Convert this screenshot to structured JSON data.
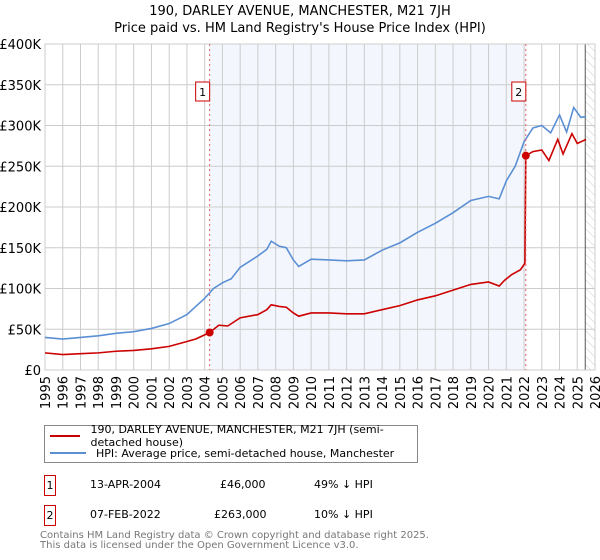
{
  "title": "190, DARLEY AVENUE, MANCHESTER, M21 7JH",
  "subtitle": "Price paid vs. HM Land Registry's House Price Index (HPI)",
  "chart_data": {
    "type": "line",
    "title": "190, DARLEY AVENUE, MANCHESTER, M21 7JH — Price paid vs. HM Land Registry's House Price Index (HPI)",
    "xlim": [
      1995,
      2026
    ],
    "ylim": [
      0,
      400000
    ],
    "yticks": [
      0,
      50000,
      100000,
      150000,
      200000,
      250000,
      300000,
      350000,
      400000
    ],
    "ytick_labels": [
      "£0",
      "£50K",
      "£100K",
      "£150K",
      "£200K",
      "£250K",
      "£300K",
      "£350K",
      "£400K"
    ],
    "xticks": [
      1995,
      1996,
      1997,
      1998,
      1999,
      2000,
      2001,
      2002,
      2003,
      2004,
      2005,
      2006,
      2007,
      2008,
      2009,
      2010,
      2011,
      2012,
      2013,
      2014,
      2015,
      2016,
      2017,
      2018,
      2019,
      2020,
      2021,
      2022,
      2023,
      2024,
      2025,
      2026
    ],
    "grid": true,
    "shaded_range": [
      2004.28,
      2022.1
    ],
    "hatched_from": 2025.45,
    "series": [
      {
        "name": "190, DARLEY AVENUE, MANCHESTER, M21 7JH (semi-detached house)",
        "color": "#cc0000",
        "x": [
          1995,
          1996,
          1997,
          1998,
          1999,
          2000,
          2001,
          2002,
          2003,
          2003.5,
          2004.28,
          2004.8,
          2005.3,
          2006,
          2007,
          2007.5,
          2007.75,
          2008.2,
          2008.6,
          2009,
          2009.3,
          2010,
          2011,
          2012,
          2013,
          2014,
          2015,
          2016,
          2017,
          2018,
          2019,
          2020,
          2020.6,
          2020.9,
          2021.3,
          2021.8,
          2022.05,
          2022.1,
          2022.5,
          2023,
          2023.4,
          2023.9,
          2024.2,
          2024.7,
          2025,
          2025.5
        ],
        "y": [
          21000,
          19000,
          20000,
          21000,
          23000,
          24000,
          26000,
          29000,
          35000,
          38000,
          46000,
          55000,
          54000,
          64000,
          68000,
          74000,
          80000,
          78000,
          77000,
          70000,
          66000,
          70000,
          70000,
          69000,
          69000,
          74000,
          79000,
          86000,
          91000,
          98000,
          105000,
          108000,
          103000,
          110000,
          117000,
          123000,
          131000,
          263000,
          268000,
          270000,
          257000,
          283000,
          265000,
          290000,
          278000,
          283000
        ]
      },
      {
        "name": "HPI: Average price, semi-detached house, Manchester",
        "color": "#5b8fd4",
        "x": [
          1995,
          1996,
          1997,
          1998,
          1999,
          2000,
          2001,
          2002,
          2003,
          2003.5,
          2004,
          2004.5,
          2005,
          2005.5,
          2006,
          2007,
          2007.5,
          2007.75,
          2008.2,
          2008.6,
          2009,
          2009.3,
          2010,
          2011,
          2012,
          2013,
          2014,
          2015,
          2016,
          2017,
          2018,
          2019,
          2020,
          2020.6,
          2021,
          2021.5,
          2022,
          2022.5,
          2023,
          2023.5,
          2024,
          2024.4,
          2024.8,
          2025.2,
          2025.5
        ],
        "y": [
          40000,
          38000,
          40000,
          42000,
          45000,
          47000,
          51000,
          57000,
          68000,
          78000,
          88000,
          100000,
          107000,
          112000,
          126000,
          140000,
          148000,
          158000,
          152000,
          150000,
          135000,
          127000,
          136000,
          135000,
          134000,
          135000,
          147000,
          156000,
          169000,
          180000,
          193000,
          208000,
          213000,
          210000,
          232000,
          250000,
          280000,
          297000,
          300000,
          291000,
          313000,
          292000,
          322000,
          310000,
          311000
        ]
      }
    ],
    "annotations": [
      {
        "label": "1",
        "x": 2004.28,
        "y": 46000
      },
      {
        "label": "2",
        "x": 2022.1,
        "y": 263000
      }
    ],
    "legend_position": "below"
  },
  "legend": [
    {
      "label": "190, DARLEY AVENUE, MANCHESTER, M21 7JH (semi-detached house)",
      "color": "#cc0000"
    },
    {
      "label": "HPI: Average price, semi-detached house, Manchester",
      "color": "#5b8fd4"
    }
  ],
  "sales": [
    {
      "num": "1",
      "date": "13-APR-2004",
      "price": "£46,000",
      "hpi": "49% ↓ HPI"
    },
    {
      "num": "2",
      "date": "07-FEB-2022",
      "price": "£263,000",
      "hpi": "10% ↓ HPI"
    }
  ],
  "footer": {
    "line1": "Contains HM Land Registry data © Crown copyright and database right 2025.",
    "line2": "This data is licensed under the Open Government Licence v3.0."
  }
}
